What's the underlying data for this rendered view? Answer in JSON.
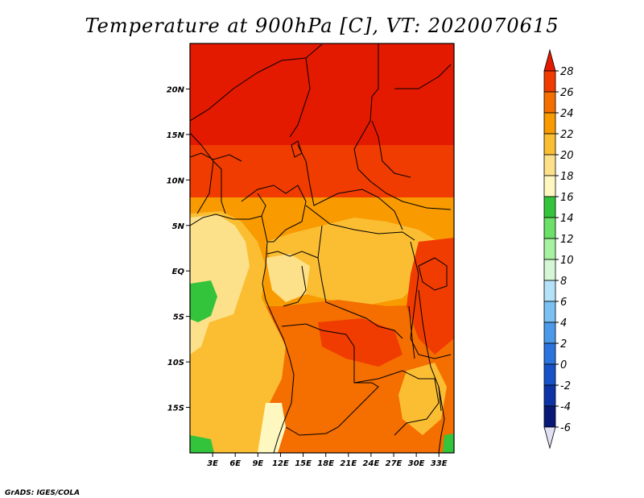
{
  "title": "Temperature at 900hPa [C], VT: 2020070615",
  "credit": "GrADS: IGES/COLA",
  "map": {
    "lon_range": [
      0,
      35
    ],
    "lat_range": [
      -20,
      25
    ],
    "lon_ticks": [
      {
        "value": 3,
        "label": "3E"
      },
      {
        "value": 6,
        "label": "6E"
      },
      {
        "value": 9,
        "label": "9E"
      },
      {
        "value": 12,
        "label": "12E"
      },
      {
        "value": 15,
        "label": "15E"
      },
      {
        "value": 18,
        "label": "18E"
      },
      {
        "value": 21,
        "label": "21E"
      },
      {
        "value": 24,
        "label": "24E"
      },
      {
        "value": 27,
        "label": "27E"
      },
      {
        "value": 30,
        "label": "30E"
      },
      {
        "value": 33,
        "label": "33E"
      }
    ],
    "lat_ticks": [
      {
        "value": 20,
        "label": "20N"
      },
      {
        "value": 15,
        "label": "15N"
      },
      {
        "value": 10,
        "label": "10N"
      },
      {
        "value": 5,
        "label": "5N"
      },
      {
        "value": 0,
        "label": "EQ"
      },
      {
        "value": -5,
        "label": "5S"
      },
      {
        "value": -10,
        "label": "10S"
      },
      {
        "value": -15,
        "label": "15S"
      }
    ]
  },
  "colorbar": {
    "labels": [
      "28",
      "26",
      "24",
      "22",
      "20",
      "18",
      "16",
      "14",
      "12",
      "10",
      "8",
      "6",
      "4",
      "2",
      "0",
      "-2",
      "-4",
      "-6"
    ],
    "colors": [
      "#e41a00",
      "#f03c00",
      "#f46e00",
      "#f89a00",
      "#fbbe33",
      "#fde18a",
      "#fef8c0",
      "#33c43b",
      "#6ce068",
      "#a6f2a0",
      "#d6f7d6",
      "#b4e2f9",
      "#7bc0f2",
      "#4b99e8",
      "#2b73de",
      "#1852c9",
      "#0e33a7",
      "#081978",
      "#e0e0f4"
    ]
  },
  "field_colors": {
    "c28": "#e41a00",
    "c26": "#f03c00",
    "c24": "#f46e00",
    "c22": "#f89a00",
    "c20": "#fbbe33",
    "c18": "#fde18a",
    "c16": "#fef8c0",
    "c14": "#33c43b"
  }
}
